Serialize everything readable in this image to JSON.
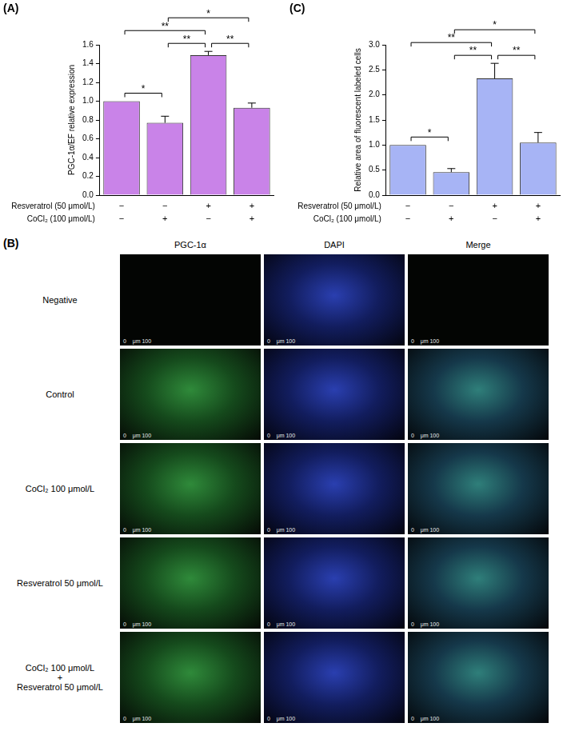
{
  "chart_data": [
    {
      "type": "bar",
      "panel": "(A)",
      "y_label": "PGC-1α/EF relative expression",
      "categories": [
        [
          "−",
          "−"
        ],
        [
          "−",
          "+"
        ],
        [
          "+",
          "−"
        ],
        [
          "+",
          "+"
        ]
      ],
      "category_rows": [
        "Resveratrol (50 μmol/L)",
        "CoCl₂ (100 μmol/L)"
      ],
      "values": [
        1.0,
        0.77,
        1.49,
        0.93
      ],
      "errors": [
        0,
        0.07,
        0.04,
        0.05
      ],
      "color": "#c983e8",
      "ylim": [
        0,
        1.6
      ],
      "yticks": [
        {
          "value": 0,
          "label": "0.0"
        },
        {
          "value": 0.2,
          "label": "0.2"
        },
        {
          "value": 0.4,
          "label": "0.4"
        },
        {
          "value": 0.6,
          "label": "0.6"
        },
        {
          "value": 0.8,
          "label": "0.8"
        },
        {
          "value": 1.0,
          "label": "1.0"
        },
        {
          "value": 1.2,
          "label": "1.2"
        },
        {
          "value": 1.4,
          "label": "1.4"
        },
        {
          "value": 1.6,
          "label": "1.6"
        }
      ],
      "grid": false,
      "comparisons": [
        {
          "from": 0,
          "to": 1,
          "label": "*"
        },
        {
          "from": 1,
          "to": 2,
          "label": "**"
        },
        {
          "from": 2,
          "to": 3,
          "label": "**"
        },
        {
          "from": 0,
          "to": 2,
          "label": "**"
        },
        {
          "from": 1,
          "to": 3,
          "label": "*"
        }
      ]
    },
    {
      "type": "bar",
      "panel": "(C)",
      "y_label": "Relative area of fluorescent labeled cells",
      "categories": [
        [
          "−",
          "−"
        ],
        [
          "−",
          "+"
        ],
        [
          "+",
          "−"
        ],
        [
          "+",
          "+"
        ]
      ],
      "category_rows": [
        "Resveratrol (50 μmol/L)",
        "CoCl₂ (100 μmol/L)"
      ],
      "values": [
        1.0,
        0.46,
        2.33,
        1.05
      ],
      "errors": [
        0,
        0.07,
        0.3,
        0.2
      ],
      "color": "#a7b4f5",
      "ylim": [
        0,
        3.0
      ],
      "yticks": [
        {
          "value": 0,
          "label": "0.0"
        },
        {
          "value": 0.5,
          "label": "0.5"
        },
        {
          "value": 1.0,
          "label": "1.0"
        },
        {
          "value": 1.5,
          "label": "1.5"
        },
        {
          "value": 2.0,
          "label": "2.0"
        },
        {
          "value": 2.5,
          "label": "2.5"
        },
        {
          "value": 3.0,
          "label": "3.0"
        }
      ],
      "grid": false,
      "comparisons": [
        {
          "from": 0,
          "to": 1,
          "label": "*"
        },
        {
          "from": 1,
          "to": 2,
          "label": "**"
        },
        {
          "from": 2,
          "to": 3,
          "label": "**"
        },
        {
          "from": 0,
          "to": 2,
          "label": "**"
        },
        {
          "from": 1,
          "to": 3,
          "label": "*"
        }
      ]
    }
  ],
  "panel_b": {
    "panel": "(B)",
    "columns": [
      "PGC-1α",
      "DAPI",
      "Merge"
    ],
    "rows": [
      [
        "Negative"
      ],
      [
        "Control"
      ],
      [
        "CoCl₂ 100 μmol/L"
      ],
      [
        "Resveratrol 50 μmol/L"
      ],
      [
        "CoCl₂ 100 μmol/L",
        "+",
        "Resveratrol 50 μmol/L"
      ]
    ],
    "scale_bar": "0    μm 100"
  }
}
